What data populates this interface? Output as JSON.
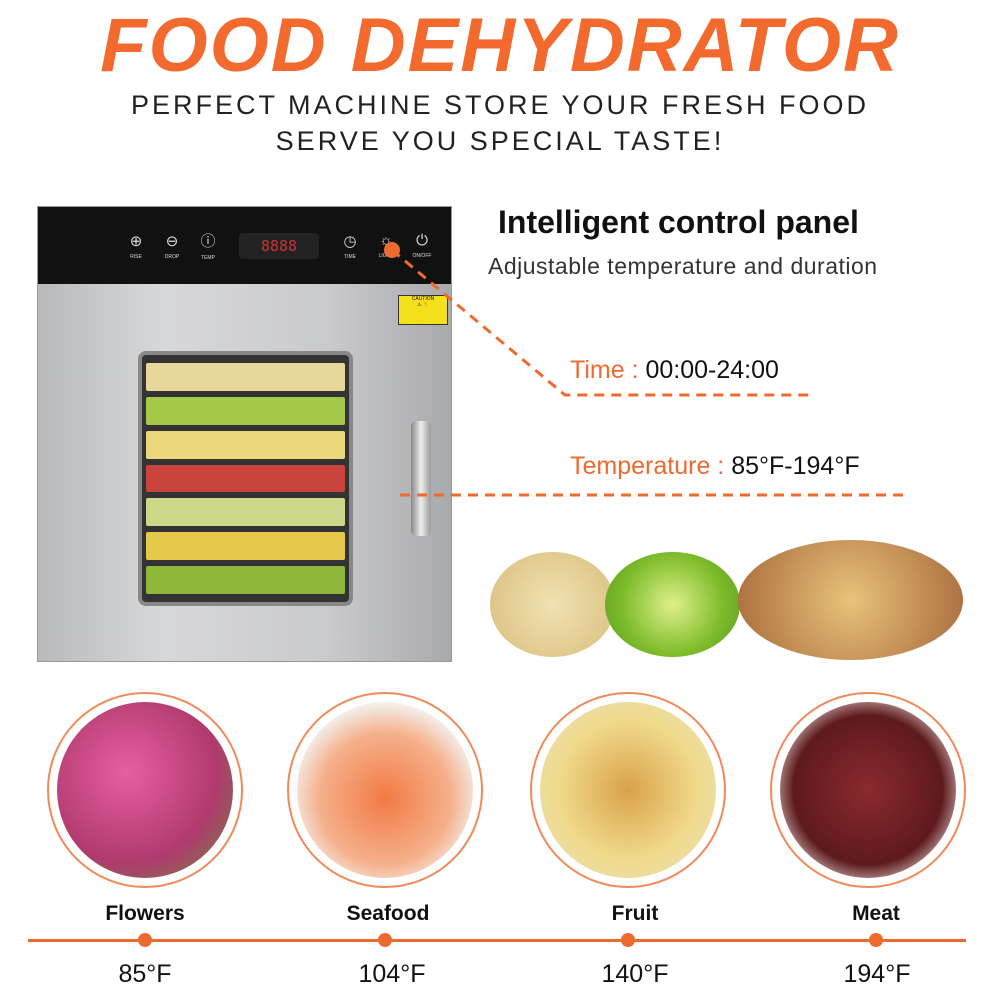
{
  "title": "FOOD DEHYDRATOR",
  "subtitle": [
    "PERFECT MACHINE STORE YOUR FRESH FOOD",
    "SERVE YOU SPECIAL TASTE!"
  ],
  "panel": {
    "buttons": [
      {
        "icon": "plus-circle-icon",
        "label": "RISE"
      },
      {
        "icon": "minus-circle-icon",
        "label": "DROP"
      },
      {
        "icon": "thermometer-icon",
        "label": "TEMP"
      },
      {
        "icon": "clock-icon",
        "label": "TIME"
      },
      {
        "icon": "light-icon",
        "label": "LIGHT"
      },
      {
        "icon": "power-icon",
        "label": "ON/OFF"
      }
    ],
    "display": "8888",
    "caution": "CAUTION"
  },
  "feature": {
    "heading": "Intelligent control panel",
    "description": "Adjustable temperature and duration"
  },
  "specs": [
    {
      "label": "Time :",
      "value": "00:00-24:00"
    },
    {
      "label": "Temperature :",
      "value": "85°F-194°F"
    }
  ],
  "categories": [
    {
      "name": "Flowers",
      "temp": "85°F"
    },
    {
      "name": "Seafood",
      "temp": "104°F"
    },
    {
      "name": "Fruit",
      "temp": "140°F"
    },
    {
      "name": "Meat",
      "temp": "194°F"
    }
  ],
  "colors": {
    "accent": "#ef6a2f"
  }
}
